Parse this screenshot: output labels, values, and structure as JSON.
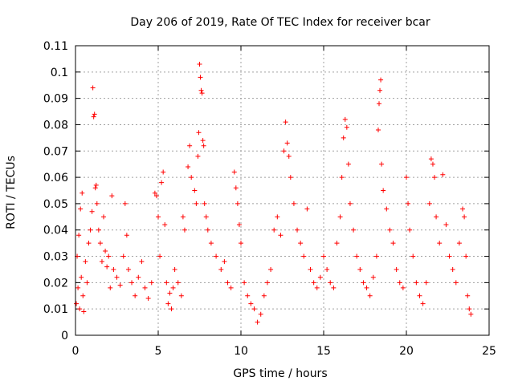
{
  "chart_data": {
    "type": "scatter",
    "title": "Day 206 of 2019, Rate Of TEC Index for receiver bcar",
    "xlabel": "GPS time / hours",
    "ylabel": "ROTI / TECUs",
    "xlim": [
      0,
      25
    ],
    "ylim": [
      0,
      0.11
    ],
    "xticks": [
      0,
      5,
      10,
      15,
      20,
      25
    ],
    "xtick_labels": [
      "0",
      "5",
      "10",
      "15",
      "20",
      "25"
    ],
    "yticks": [
      0,
      0.01,
      0.02,
      0.03,
      0.04,
      0.05,
      0.06,
      0.07,
      0.08,
      0.09,
      0.1,
      0.11
    ],
    "ytick_labels": [
      "0",
      "0.01",
      "0.02",
      "0.03",
      "0.04",
      "0.05",
      "0.06",
      "0.07",
      "0.08",
      "0.09",
      "0.1",
      "0.11"
    ],
    "grid": true,
    "marker": "+",
    "color": "#ff0000",
    "series": [
      {
        "name": "ROTI",
        "points": [
          [
            0.05,
            0.012
          ],
          [
            0.1,
            0.03
          ],
          [
            0.15,
            0.018
          ],
          [
            0.2,
            0.038
          ],
          [
            0.25,
            0.01
          ],
          [
            0.3,
            0.048
          ],
          [
            0.35,
            0.022
          ],
          [
            0.4,
            0.054
          ],
          [
            0.45,
            0.015
          ],
          [
            0.5,
            0.009
          ],
          [
            0.6,
            0.028
          ],
          [
            0.7,
            0.02
          ],
          [
            0.8,
            0.035
          ],
          [
            0.9,
            0.04
          ],
          [
            1.0,
            0.047
          ],
          [
            1.05,
            0.094
          ],
          [
            1.1,
            0.083
          ],
          [
            1.15,
            0.084
          ],
          [
            1.2,
            0.056
          ],
          [
            1.25,
            0.057
          ],
          [
            1.3,
            0.05
          ],
          [
            1.4,
            0.04
          ],
          [
            1.5,
            0.035
          ],
          [
            1.6,
            0.028
          ],
          [
            1.7,
            0.045
          ],
          [
            1.8,
            0.032
          ],
          [
            1.9,
            0.026
          ],
          [
            2.0,
            0.03
          ],
          [
            2.1,
            0.018
          ],
          [
            2.2,
            0.053
          ],
          [
            2.3,
            0.025
          ],
          [
            2.5,
            0.022
          ],
          [
            2.7,
            0.019
          ],
          [
            2.9,
            0.03
          ],
          [
            3.0,
            0.05
          ],
          [
            3.1,
            0.038
          ],
          [
            3.2,
            0.025
          ],
          [
            3.4,
            0.02
          ],
          [
            3.6,
            0.015
          ],
          [
            3.8,
            0.022
          ],
          [
            4.0,
            0.028
          ],
          [
            4.2,
            0.018
          ],
          [
            4.4,
            0.014
          ],
          [
            4.6,
            0.02
          ],
          [
            4.8,
            0.054
          ],
          [
            4.9,
            0.053
          ],
          [
            5.0,
            0.045
          ],
          [
            5.1,
            0.03
          ],
          [
            5.2,
            0.058
          ],
          [
            5.3,
            0.062
          ],
          [
            5.4,
            0.042
          ],
          [
            5.5,
            0.02
          ],
          [
            5.6,
            0.012
          ],
          [
            5.7,
            0.016
          ],
          [
            5.8,
            0.01
          ],
          [
            5.9,
            0.018
          ],
          [
            6.0,
            0.025
          ],
          [
            6.2,
            0.02
          ],
          [
            6.4,
            0.015
          ],
          [
            6.5,
            0.045
          ],
          [
            6.6,
            0.04
          ],
          [
            6.8,
            0.064
          ],
          [
            6.9,
            0.072
          ],
          [
            7.0,
            0.06
          ],
          [
            7.2,
            0.055
          ],
          [
            7.3,
            0.05
          ],
          [
            7.4,
            0.068
          ],
          [
            7.45,
            0.077
          ],
          [
            7.5,
            0.103
          ],
          [
            7.55,
            0.098
          ],
          [
            7.6,
            0.093
          ],
          [
            7.65,
            0.092
          ],
          [
            7.7,
            0.074
          ],
          [
            7.75,
            0.072
          ],
          [
            7.8,
            0.05
          ],
          [
            7.9,
            0.045
          ],
          [
            8.0,
            0.04
          ],
          [
            8.2,
            0.035
          ],
          [
            8.5,
            0.03
          ],
          [
            8.8,
            0.025
          ],
          [
            9.0,
            0.028
          ],
          [
            9.2,
            0.02
          ],
          [
            9.4,
            0.018
          ],
          [
            9.6,
            0.062
          ],
          [
            9.7,
            0.056
          ],
          [
            9.8,
            0.05
          ],
          [
            9.9,
            0.042
          ],
          [
            10.0,
            0.035
          ],
          [
            10.2,
            0.02
          ],
          [
            10.4,
            0.015
          ],
          [
            10.6,
            0.012
          ],
          [
            10.8,
            0.01
          ],
          [
            11.0,
            0.005
          ],
          [
            11.2,
            0.008
          ],
          [
            11.4,
            0.015
          ],
          [
            11.6,
            0.02
          ],
          [
            11.8,
            0.025
          ],
          [
            12.0,
            0.04
          ],
          [
            12.2,
            0.045
          ],
          [
            12.4,
            0.038
          ],
          [
            12.6,
            0.07
          ],
          [
            12.7,
            0.081
          ],
          [
            12.8,
            0.073
          ],
          [
            12.9,
            0.068
          ],
          [
            13.0,
            0.06
          ],
          [
            13.2,
            0.05
          ],
          [
            13.4,
            0.04
          ],
          [
            13.6,
            0.035
          ],
          [
            13.8,
            0.03
          ],
          [
            14.0,
            0.048
          ],
          [
            14.2,
            0.025
          ],
          [
            14.4,
            0.02
          ],
          [
            14.6,
            0.018
          ],
          [
            14.8,
            0.022
          ],
          [
            15.0,
            0.03
          ],
          [
            15.2,
            0.025
          ],
          [
            15.4,
            0.02
          ],
          [
            15.6,
            0.018
          ],
          [
            15.8,
            0.035
          ],
          [
            16.0,
            0.045
          ],
          [
            16.1,
            0.06
          ],
          [
            16.2,
            0.075
          ],
          [
            16.3,
            0.082
          ],
          [
            16.4,
            0.079
          ],
          [
            16.5,
            0.065
          ],
          [
            16.6,
            0.05
          ],
          [
            16.8,
            0.04
          ],
          [
            17.0,
            0.03
          ],
          [
            17.2,
            0.025
          ],
          [
            17.4,
            0.02
          ],
          [
            17.6,
            0.018
          ],
          [
            17.8,
            0.015
          ],
          [
            18.0,
            0.022
          ],
          [
            18.2,
            0.03
          ],
          [
            18.3,
            0.078
          ],
          [
            18.35,
            0.088
          ],
          [
            18.4,
            0.093
          ],
          [
            18.45,
            0.097
          ],
          [
            18.5,
            0.065
          ],
          [
            18.6,
            0.055
          ],
          [
            18.8,
            0.048
          ],
          [
            19.0,
            0.04
          ],
          [
            19.2,
            0.035
          ],
          [
            19.4,
            0.025
          ],
          [
            19.6,
            0.02
          ],
          [
            19.8,
            0.018
          ],
          [
            20.0,
            0.06
          ],
          [
            20.1,
            0.05
          ],
          [
            20.2,
            0.04
          ],
          [
            20.4,
            0.03
          ],
          [
            20.6,
            0.02
          ],
          [
            20.8,
            0.015
          ],
          [
            21.0,
            0.012
          ],
          [
            21.2,
            0.02
          ],
          [
            21.4,
            0.05
          ],
          [
            21.5,
            0.067
          ],
          [
            21.6,
            0.065
          ],
          [
            21.7,
            0.06
          ],
          [
            21.8,
            0.045
          ],
          [
            22.0,
            0.035
          ],
          [
            22.2,
            0.061
          ],
          [
            22.4,
            0.042
          ],
          [
            22.6,
            0.03
          ],
          [
            22.8,
            0.025
          ],
          [
            23.0,
            0.02
          ],
          [
            23.2,
            0.035
          ],
          [
            23.4,
            0.048
          ],
          [
            23.5,
            0.045
          ],
          [
            23.6,
            0.03
          ],
          [
            23.7,
            0.015
          ],
          [
            23.8,
            0.01
          ],
          [
            23.9,
            0.008
          ]
        ]
      }
    ]
  }
}
